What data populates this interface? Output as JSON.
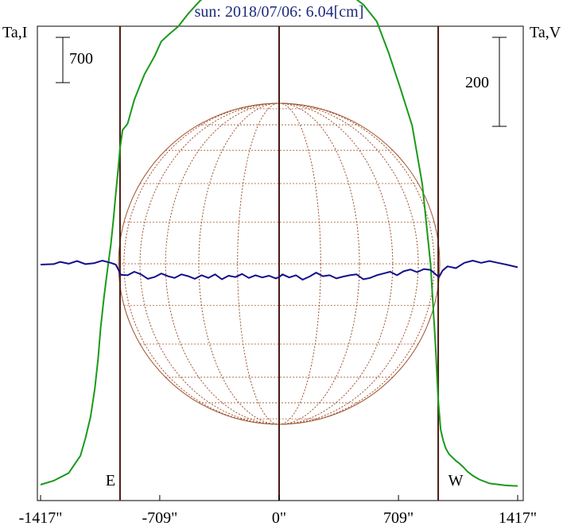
{
  "chart_data": {
    "type": "line",
    "title": "sun: 2018/07/06: 6.04[cm]",
    "left_axis_label": "Ta,I",
    "right_axis_label": "Ta,V",
    "scale_bars": {
      "left": {
        "label": "700",
        "value": 700
      },
      "right": {
        "label": "200",
        "value": 200
      }
    },
    "x_ticks": [
      {
        "value": -1417,
        "label": "-1417\""
      },
      {
        "value": -709,
        "label": "-709\""
      },
      {
        "value": 0,
        "label": "0\""
      },
      {
        "value": 709,
        "label": "709\""
      },
      {
        "value": 1417,
        "label": "1417\""
      }
    ],
    "xlim": [
      -1417,
      1417
    ],
    "limb_markers": [
      {
        "label": "E",
        "x": -945
      },
      {
        "label": "W",
        "x": 945
      }
    ],
    "series": [
      {
        "name": "I",
        "color": "#1a9a1a",
        "x": [
          -1417,
          -1340,
          -1250,
          -1180,
          -1150,
          -1120,
          -1095,
          -1075,
          -1060,
          -1040,
          -1020,
          -1000,
          -985,
          -970,
          -955,
          -945,
          -930,
          -900,
          -860,
          -800,
          -740,
          -700,
          -650,
          -600,
          -540,
          -470,
          -400,
          -330,
          -260,
          -190,
          -120,
          -60,
          0,
          40,
          80,
          120,
          160,
          220,
          280,
          350,
          420,
          500,
          580,
          650,
          720,
          790,
          850,
          900,
          930,
          945,
          960,
          975,
          990,
          1010,
          1030,
          1050,
          1070,
          1095,
          1120,
          1150,
          1190,
          1250,
          1340,
          1417
        ],
        "y": [
          0,
          60,
          180,
          450,
          720,
          1050,
          1480,
          1950,
          2430,
          2900,
          3320,
          3700,
          4080,
          4500,
          4900,
          5200,
          5480,
          5580,
          5950,
          6340,
          6620,
          6850,
          6970,
          7080,
          7280,
          7480,
          7620,
          7750,
          7880,
          7950,
          7980,
          8050,
          8180,
          8010,
          8160,
          7980,
          8070,
          8000,
          7900,
          7760,
          7580,
          7420,
          7160,
          6680,
          6130,
          5550,
          4650,
          3400,
          2100,
          1300,
          850,
          680,
          560,
          470,
          420,
          370,
          330,
          270,
          200,
          140,
          80,
          20,
          -10,
          -20
        ]
      },
      {
        "name": "V",
        "color": "#10108a",
        "x": [
          -1417,
          -1340,
          -1300,
          -1250,
          -1200,
          -1150,
          -1100,
          -1050,
          -1000,
          -970,
          -950,
          -940,
          -900,
          -860,
          -820,
          -780,
          -740,
          -700,
          -660,
          -620,
          -580,
          -540,
          -500,
          -460,
          -420,
          -380,
          -340,
          -300,
          -260,
          -220,
          -180,
          -140,
          -100,
          -60,
          -20,
          0,
          20,
          60,
          100,
          140,
          180,
          220,
          260,
          300,
          340,
          380,
          420,
          460,
          500,
          540,
          580,
          620,
          660,
          700,
          740,
          780,
          820,
          860,
          900,
          930,
          950,
          970,
          1000,
          1050,
          1100,
          1150,
          1200,
          1250,
          1300,
          1350,
          1417
        ],
        "y": [
          0,
          1,
          6,
          2,
          8,
          1,
          3,
          9,
          4,
          0,
          -15,
          -23,
          -24,
          -16,
          -22,
          -32,
          -28,
          -20,
          -26,
          -30,
          -22,
          -26,
          -32,
          -24,
          -30,
          -22,
          -33,
          -25,
          -28,
          -21,
          -30,
          -24,
          -29,
          -25,
          -31,
          -28,
          -22,
          -29,
          -24,
          -34,
          -27,
          -18,
          -26,
          -24,
          -31,
          -27,
          -24,
          -22,
          -33,
          -30,
          -24,
          -20,
          -16,
          -24,
          -15,
          -11,
          -17,
          -10,
          -12,
          -22,
          -28,
          -14,
          -4,
          -8,
          4,
          9,
          4,
          8,
          4,
          0,
          -6
        ]
      }
    ]
  }
}
